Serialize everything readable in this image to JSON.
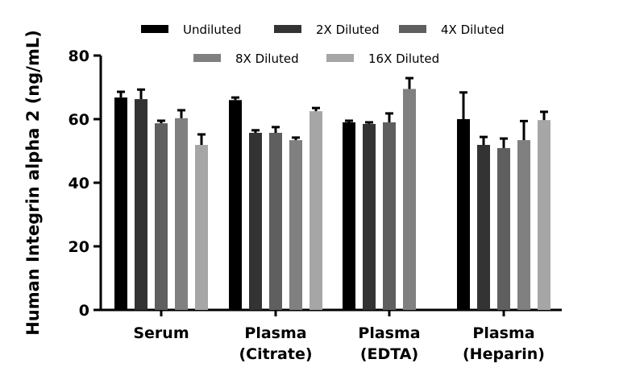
{
  "chart_data": {
    "type": "bar",
    "title": "",
    "xlabel": "",
    "ylabel": "Human Integrin alpha 2 (ng/mL)",
    "ylim": [
      0,
      80
    ],
    "yticks": [
      0,
      20,
      40,
      60,
      80
    ],
    "grid": false,
    "legend_position": "top",
    "categories": [
      [
        "Serum"
      ],
      [
        "Plasma",
        "(Citrate)"
      ],
      [
        "Plasma",
        "(EDTA)"
      ],
      [
        "Plasma",
        "(Heparin)"
      ]
    ],
    "series": [
      {
        "name": "Undiluted",
        "color": "#000000",
        "values": [
          66.8,
          66.0,
          59.0,
          60.0
        ],
        "errors": [
          1.8,
          0.8,
          0.5,
          8.4
        ]
      },
      {
        "name": "2X Diluted",
        "color": "#333333",
        "values": [
          66.3,
          55.7,
          58.5,
          51.9
        ],
        "errors": [
          3.0,
          0.8,
          0.5,
          2.5
        ]
      },
      {
        "name": "4X Diluted",
        "color": "#5f5f5f",
        "values": [
          58.7,
          55.7,
          59.0,
          50.9
        ],
        "errors": [
          0.8,
          1.8,
          2.8,
          3.0
        ]
      },
      {
        "name": "8X Diluted",
        "color": "#808080",
        "values": [
          60.3,
          53.4,
          69.5,
          53.4
        ],
        "errors": [
          2.5,
          0.8,
          3.4,
          6.0
        ]
      },
      {
        "name": "16X Diluted",
        "color": "#a6a6a6",
        "values": [
          51.9,
          62.5,
          null,
          59.7
        ],
        "errors": [
          3.3,
          1.0,
          null,
          2.6
        ]
      }
    ]
  }
}
